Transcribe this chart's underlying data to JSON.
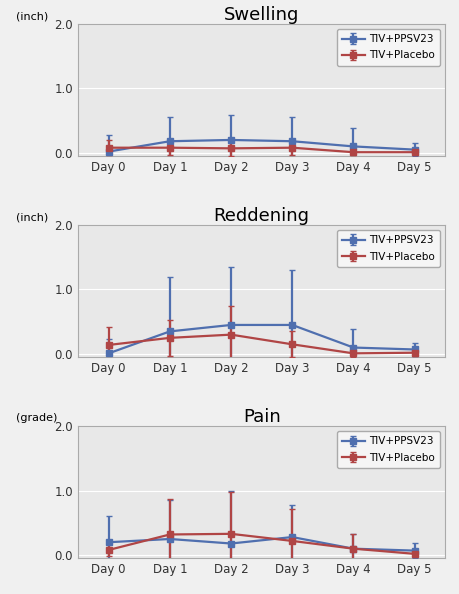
{
  "days": [
    0,
    1,
    2,
    3,
    4,
    5
  ],
  "day_labels": [
    "Day 0",
    "Day 1",
    "Day 2",
    "Day 3",
    "Day 4",
    "Day 5"
  ],
  "panels": [
    {
      "title": "Swelling",
      "ylabel": "(inch)",
      "ylim": [
        -0.05,
        2.0
      ],
      "yticks": [
        0.0,
        1.0,
        2.0
      ],
      "ppsv23_mean": [
        0.02,
        0.18,
        0.2,
        0.18,
        0.1,
        0.05
      ],
      "ppsv23_err": [
        0.25,
        0.38,
        0.38,
        0.38,
        0.28,
        0.1
      ],
      "placebo_mean": [
        0.08,
        0.08,
        0.07,
        0.08,
        0.01,
        0.01
      ],
      "placebo_err": [
        0.12,
        0.12,
        0.12,
        0.12,
        0.05,
        0.05
      ]
    },
    {
      "title": "Reddening",
      "ylabel": "(inch)",
      "ylim": [
        -0.05,
        2.0
      ],
      "yticks": [
        0.0,
        1.0,
        2.0
      ],
      "ppsv23_mean": [
        0.01,
        0.35,
        0.45,
        0.45,
        0.1,
        0.07
      ],
      "ppsv23_err": [
        0.22,
        0.85,
        0.9,
        0.85,
        0.28,
        0.1
      ],
      "placebo_mean": [
        0.14,
        0.25,
        0.3,
        0.15,
        0.01,
        0.02
      ],
      "placebo_err": [
        0.28,
        0.28,
        0.45,
        0.2,
        0.05,
        0.05
      ]
    },
    {
      "title": "Pain",
      "ylabel": "(grade)",
      "ylim": [
        -0.05,
        2.0
      ],
      "yticks": [
        0.0,
        1.0,
        2.0
      ],
      "ppsv23_mean": [
        0.2,
        0.25,
        0.18,
        0.28,
        0.1,
        0.07
      ],
      "ppsv23_err": [
        0.4,
        0.6,
        0.82,
        0.5,
        0.22,
        0.12
      ],
      "placebo_mean": [
        0.08,
        0.32,
        0.33,
        0.22,
        0.1,
        0.02
      ],
      "placebo_err": [
        0.1,
        0.55,
        0.65,
        0.5,
        0.22,
        0.08
      ]
    }
  ],
  "color_ppsv23": "#4f6faf",
  "color_placebo": "#b04545",
  "legend_ppsv23": "TIV+PPSV23",
  "legend_placebo": "TIV+Placebo",
  "marker": "s",
  "linewidth": 1.6,
  "markersize": 4.5,
  "capsize": 2.5,
  "plot_bg": "#e8e8e8",
  "fig_bg": "#f0f0f0"
}
